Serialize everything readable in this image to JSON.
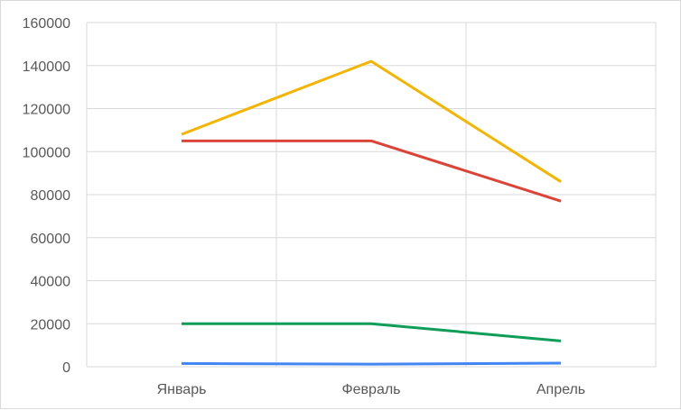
{
  "chart_data": {
    "type": "line",
    "categories": [
      "Январь",
      "Февраль",
      "Апрель"
    ],
    "ylim": [
      0,
      160000
    ],
    "yticks": [
      0,
      20000,
      40000,
      60000,
      80000,
      100000,
      120000,
      140000,
      160000
    ],
    "ytick_labels": [
      "0",
      "20000",
      "40000",
      "60000",
      "80000",
      "100000",
      "120000",
      "140000",
      "160000"
    ],
    "grid": true,
    "legend": "none",
    "series": [
      {
        "values": [
          108000,
          142000,
          86000
        ],
        "color": "#f4b400"
      },
      {
        "values": [
          105000,
          105000,
          77000
        ],
        "color": "#db4437"
      },
      {
        "values": [
          20000,
          20000,
          12000
        ],
        "color": "#0f9d58"
      },
      {
        "values": [
          1500,
          1200,
          1700
        ],
        "color": "#4285f4"
      }
    ],
    "colors": {
      "grid": "#d9d9d9",
      "axis_text": "#595959"
    }
  }
}
